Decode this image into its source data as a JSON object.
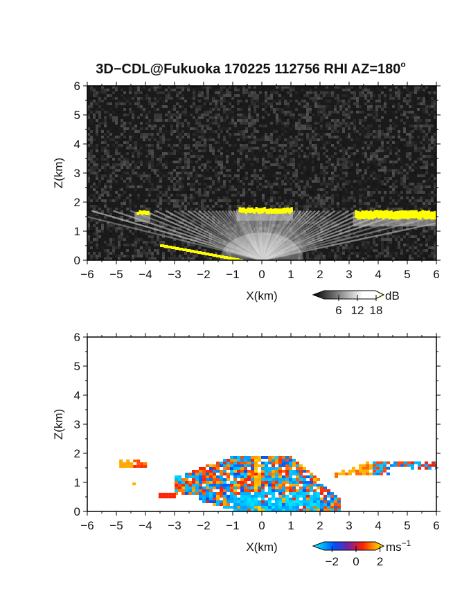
{
  "chart_data": [
    {
      "type": "heatmap",
      "title": "3D−CDL@Fukuoka 170225 112756 RHI AZ=180",
      "title_superscript": "o",
      "xlabel": "X(km)",
      "ylabel": "Z(km)",
      "xlim": [
        -6,
        6
      ],
      "ylim": [
        0,
        6
      ],
      "xticks": [
        "−6",
        "−5",
        "−4",
        "−3",
        "−2",
        "−1",
        "0",
        "1",
        "2",
        "3",
        "4",
        "5",
        "6"
      ],
      "yticks": [
        "0",
        "1",
        "2",
        "3",
        "4",
        "5",
        "6"
      ],
      "variable": "signal-to-noise ratio",
      "colorbar": {
        "unit": "dB",
        "ticks": [
          "6",
          "12",
          "18"
        ],
        "tick_values": [
          6,
          12,
          18
        ],
        "range": [
          0,
          20
        ],
        "colors": [
          "#000000",
          "#ffffff",
          "#ffff00"
        ]
      },
      "background_color": "#1a1a1a",
      "highlight_color": "#ffff00",
      "features": [
        {
          "name": "strong echo layer",
          "x": [
            -0.8,
            1.0
          ],
          "z": [
            1.6,
            1.8
          ]
        },
        {
          "name": "left echo patch",
          "x": [
            -4.3,
            -3.9
          ],
          "z": [
            1.55,
            1.7
          ]
        },
        {
          "name": "right echo layer",
          "x": [
            3.2,
            6.0
          ],
          "z": [
            1.4,
            1.7
          ]
        },
        {
          "name": "low-angle ground echo",
          "x": [
            -3.5,
            -0.8
          ],
          "z": [
            0.0,
            0.5
          ]
        }
      ]
    },
    {
      "type": "heatmap",
      "variable": "doppler velocity",
      "xlabel": "X(km)",
      "ylabel": "Z(km)",
      "xlim": [
        -6,
        6
      ],
      "ylim": [
        0,
        6
      ],
      "xticks": [
        "−6",
        "−5",
        "−4",
        "−3",
        "−2",
        "−1",
        "0",
        "1",
        "2",
        "3",
        "4",
        "5",
        "6"
      ],
      "yticks": [
        "0",
        "1",
        "2",
        "3",
        "4",
        "5",
        "6"
      ],
      "colorbar": {
        "unit": "ms",
        "unit_superscript": "−1",
        "ticks": [
          "−2",
          "0",
          "2"
        ],
        "tick_values": [
          -2,
          0,
          2
        ],
        "range": [
          -3,
          3
        ],
        "colors": [
          "#00ffff",
          "#0050ff",
          "#ff2000",
          "#ffff00"
        ]
      },
      "features": [
        {
          "name": "cone of mixed velocities",
          "x": [
            -3.0,
            2.5
          ],
          "z": [
            0.0,
            1.85
          ],
          "velocity_range": [
            -2.5,
            2.5
          ]
        },
        {
          "name": "left patch",
          "x": [
            -4.9,
            -4.0
          ],
          "z": [
            1.5,
            1.7
          ],
          "velocity": 1.5
        },
        {
          "name": "right layer",
          "x": [
            2.5,
            6.0
          ],
          "z": [
            1.2,
            1.7
          ],
          "velocity_range": [
            -2.5,
            2.0
          ]
        },
        {
          "name": "near-surface negative flow",
          "x": [
            -2.0,
            2.0
          ],
          "z": [
            0.0,
            0.6
          ],
          "velocity": -2.0
        }
      ]
    }
  ]
}
